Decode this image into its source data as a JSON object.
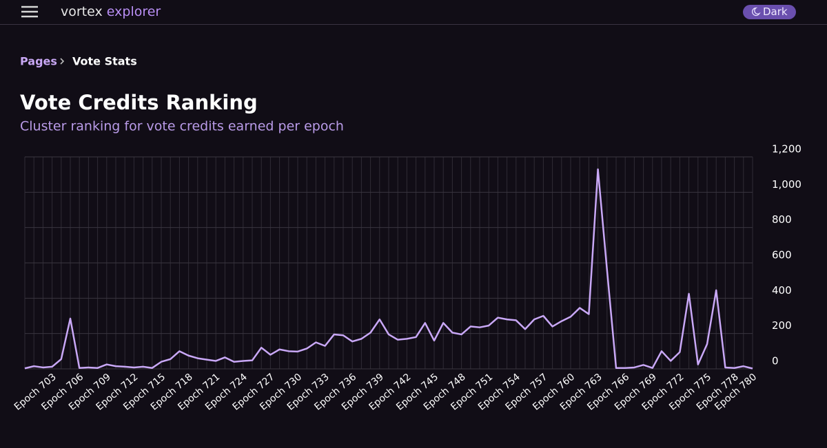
{
  "header": {
    "brand": "vortex",
    "brand_accent": "explorer",
    "theme_button": "Dark"
  },
  "breadcrumb": [
    "Pages",
    "Vote Stats"
  ],
  "chart_data": {
    "type": "line",
    "title": "Vote Credits Ranking",
    "subtitle": "Cluster ranking for vote credits earned per epoch",
    "categories": [
      null,
      null,
      null,
      "Epoch 703",
      null,
      null,
      "Epoch 706",
      null,
      null,
      "Epoch 709",
      null,
      null,
      "Epoch 712",
      null,
      null,
      "Epoch 715",
      null,
      null,
      "Epoch 718",
      null,
      null,
      "Epoch 721",
      null,
      null,
      "Epoch 724",
      null,
      null,
      "Epoch 727",
      null,
      null,
      "Epoch 730",
      null,
      null,
      "Epoch 733",
      null,
      null,
      "Epoch 736",
      null,
      null,
      "Epoch 739",
      null,
      null,
      "Epoch 742",
      null,
      null,
      "Epoch 745",
      null,
      null,
      "Epoch 748",
      null,
      null,
      "Epoch 751",
      null,
      null,
      "Epoch 754",
      null,
      null,
      "Epoch 757",
      null,
      null,
      "Epoch 760",
      null,
      null,
      "Epoch 763",
      null,
      null,
      "Epoch 766",
      null,
      null,
      "Epoch 769",
      null,
      null,
      "Epoch 772",
      null,
      null,
      "Epoch 775",
      null,
      null,
      "Epoch 778",
      null,
      "Epoch 780"
    ],
    "series": [
      {
        "color": "#c9a8f7",
        "values": [
          3,
          15,
          8,
          12,
          55,
          285,
          5,
          8,
          5,
          25,
          15,
          12,
          8,
          12,
          5,
          40,
          55,
          100,
          75,
          60,
          52,
          45,
          65,
          40,
          45,
          48,
          120,
          80,
          110,
          100,
          98,
          115,
          150,
          130,
          195,
          190,
          155,
          170,
          205,
          280,
          195,
          165,
          170,
          180,
          260,
          160,
          260,
          205,
          195,
          240,
          235,
          245,
          290,
          280,
          275,
          225,
          280,
          300,
          240,
          270,
          295,
          345,
          310,
          1130,
          560,
          5,
          5,
          8,
          22,
          5,
          100,
          45,
          95,
          425,
          25,
          140,
          445,
          8,
          5,
          15,
          2
        ]
      }
    ],
    "ylim": [
      0,
      1200
    ],
    "yticks": [
      0,
      200,
      400,
      600,
      800,
      {
        "value": 1000,
        "label": "1,000"
      },
      {
        "value": 1200,
        "label": "1,200"
      }
    ],
    "grid": true
  }
}
